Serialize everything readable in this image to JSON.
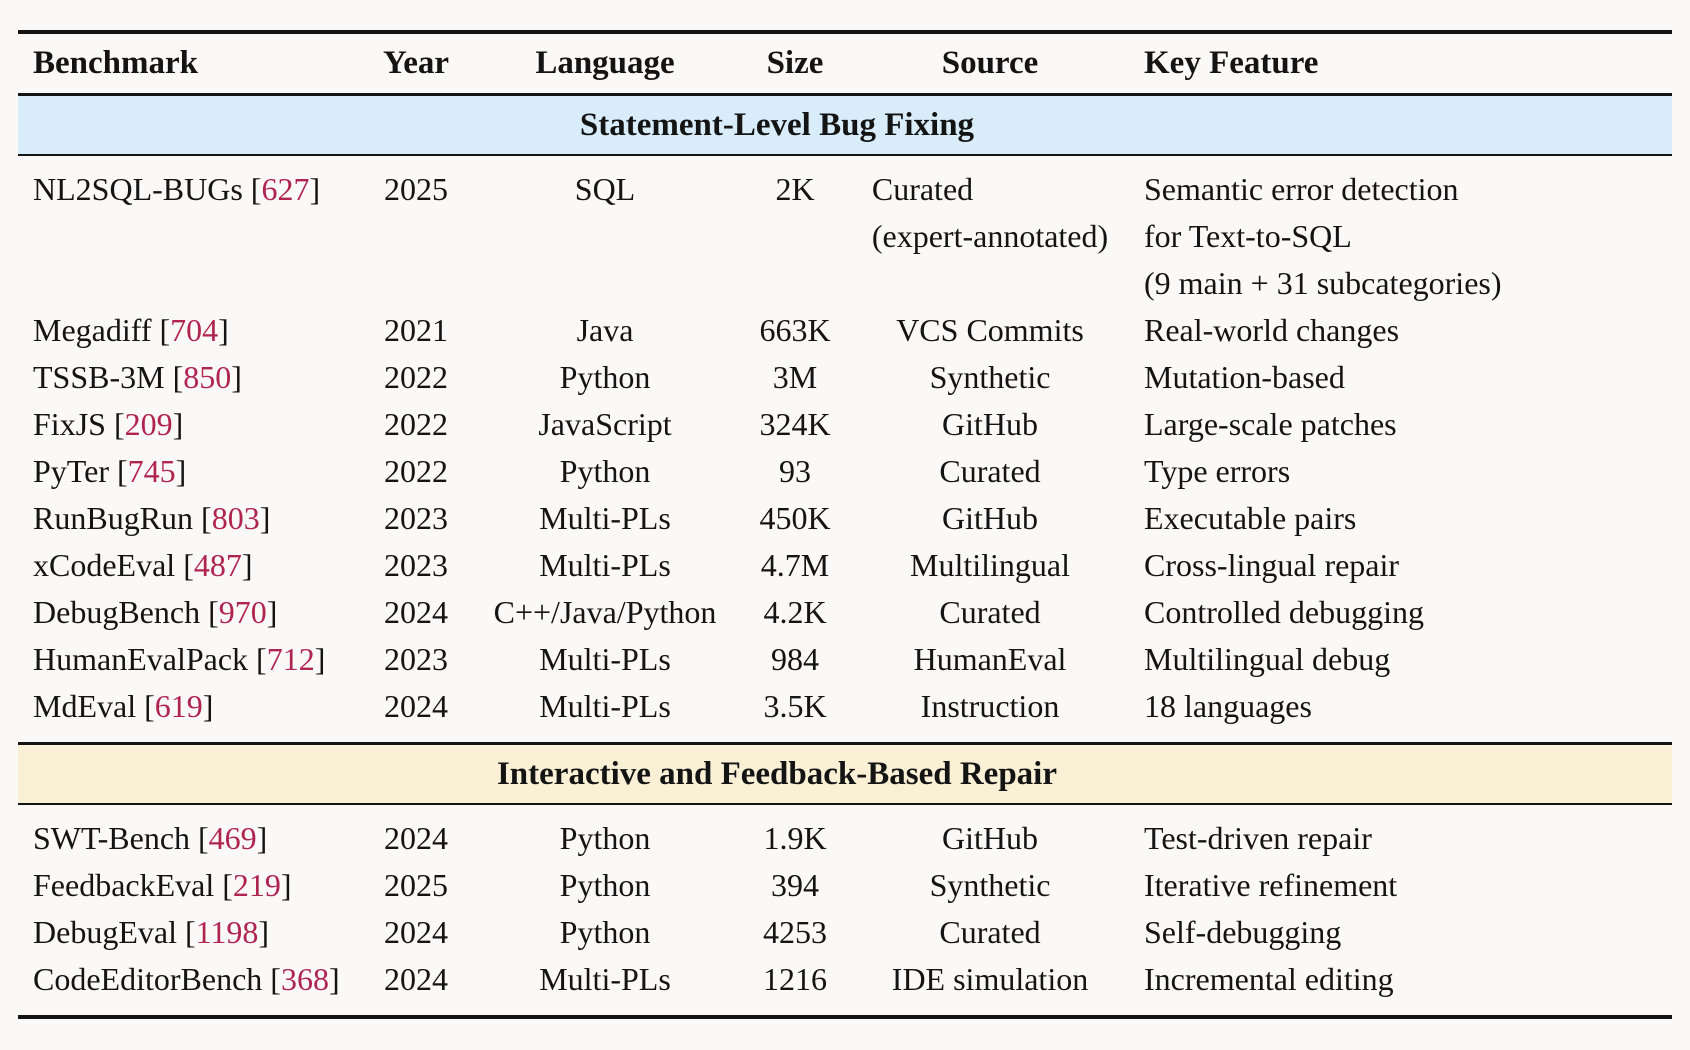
{
  "table": {
    "citation_color": "#b0254f",
    "columns": [
      {
        "label": "Benchmark"
      },
      {
        "label": "Year"
      },
      {
        "label": "Language"
      },
      {
        "label": "Size"
      },
      {
        "label": "Source"
      },
      {
        "label": "Key Feature"
      }
    ],
    "sections": [
      {
        "title": "Statement-Level Bug Fixing",
        "band_color": "#d9ecfa",
        "rows": [
          {
            "benchmark": "NL2SQL-BUGs",
            "cite": "627",
            "year": "2025",
            "language": "SQL",
            "size": "2K",
            "source": [
              "Curated",
              "(expert-annotated)"
            ],
            "feature": [
              "Semantic error detection",
              "for Text-to-SQL",
              "(9 main + 31 subcategories)"
            ]
          },
          {
            "benchmark": "Megadiff",
            "cite": "704",
            "year": "2021",
            "language": "Java",
            "size": "663K",
            "source": [
              "VCS Commits"
            ],
            "feature": [
              "Real-world changes"
            ]
          },
          {
            "benchmark": "TSSB-3M",
            "cite": "850",
            "year": "2022",
            "language": "Python",
            "size": "3M",
            "source": [
              "Synthetic"
            ],
            "feature": [
              "Mutation-based"
            ]
          },
          {
            "benchmark": "FixJS",
            "cite": "209",
            "year": "2022",
            "language": "JavaScript",
            "size": "324K",
            "source": [
              "GitHub"
            ],
            "feature": [
              "Large-scale patches"
            ]
          },
          {
            "benchmark": "PyTer",
            "cite": "745",
            "year": "2022",
            "language": "Python",
            "size": "93",
            "source": [
              "Curated"
            ],
            "feature": [
              "Type errors"
            ]
          },
          {
            "benchmark": "RunBugRun",
            "cite": "803",
            "year": "2023",
            "language": "Multi-PLs",
            "size": "450K",
            "source": [
              "GitHub"
            ],
            "feature": [
              "Executable pairs"
            ]
          },
          {
            "benchmark": "xCodeEval",
            "cite": "487",
            "year": "2023",
            "language": "Multi-PLs",
            "size": "4.7M",
            "source": [
              "Multilingual"
            ],
            "feature": [
              "Cross-lingual repair"
            ]
          },
          {
            "benchmark": "DebugBench",
            "cite": "970",
            "year": "2024",
            "language": "C++/Java/Python",
            "size": "4.2K",
            "source": [
              "Curated"
            ],
            "feature": [
              "Controlled debugging"
            ]
          },
          {
            "benchmark": "HumanEvalPack",
            "cite": "712",
            "year": "2023",
            "language": "Multi-PLs",
            "size": "984",
            "source": [
              "HumanEval"
            ],
            "feature": [
              "Multilingual debug"
            ]
          },
          {
            "benchmark": "MdEval",
            "cite": "619",
            "year": "2024",
            "language": "Multi-PLs",
            "size": "3.5K",
            "source": [
              "Instruction"
            ],
            "feature": [
              "18 languages"
            ]
          }
        ]
      },
      {
        "title": "Interactive and Feedback-Based Repair",
        "band_color": "#faf0d6",
        "rows": [
          {
            "benchmark": "SWT-Bench",
            "cite": "469",
            "year": "2024",
            "language": "Python",
            "size": "1.9K",
            "source": [
              "GitHub"
            ],
            "feature": [
              "Test-driven repair"
            ]
          },
          {
            "benchmark": "FeedbackEval",
            "cite": "219",
            "year": "2025",
            "language": "Python",
            "size": "394",
            "source": [
              "Synthetic"
            ],
            "feature": [
              "Iterative refinement"
            ]
          },
          {
            "benchmark": "DebugEval",
            "cite": "1198",
            "year": "2024",
            "language": "Python",
            "size": "4253",
            "source": [
              "Curated"
            ],
            "feature": [
              "Self-debugging"
            ]
          },
          {
            "benchmark": "CodeEditorBench",
            "cite": "368",
            "year": "2024",
            "language": "Multi-PLs",
            "size": "1216",
            "source": [
              "IDE simulation"
            ],
            "feature": [
              "Incremental editing"
            ]
          }
        ]
      }
    ]
  }
}
